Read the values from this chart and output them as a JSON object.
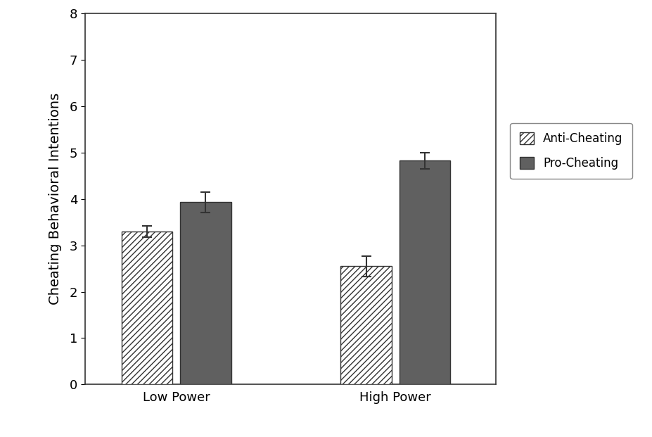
{
  "groups": [
    "Low Power",
    "High Power"
  ],
  "series": {
    "Anti-Cheating": {
      "values": [
        3.3,
        2.55
      ],
      "errors": [
        0.12,
        0.22
      ],
      "color": "#ffffff",
      "hatch": "////"
    },
    "Pro-Cheating": {
      "values": [
        3.93,
        4.82
      ],
      "errors": [
        0.22,
        0.17
      ],
      "color": "#606060",
      "hatch": ""
    }
  },
  "ylabel": "Cheating Behavioral Intentions",
  "ylim": [
    0,
    8
  ],
  "yticks": [
    0,
    1,
    2,
    3,
    4,
    5,
    6,
    7,
    8
  ],
  "bar_width": 0.28,
  "group_centers": [
    0.5,
    1.7
  ],
  "background_color": "#ffffff",
  "bar_edge_color": "#333333",
  "error_color": "#333333",
  "tick_fontsize": 13,
  "label_fontsize": 14,
  "legend_fontsize": 12
}
